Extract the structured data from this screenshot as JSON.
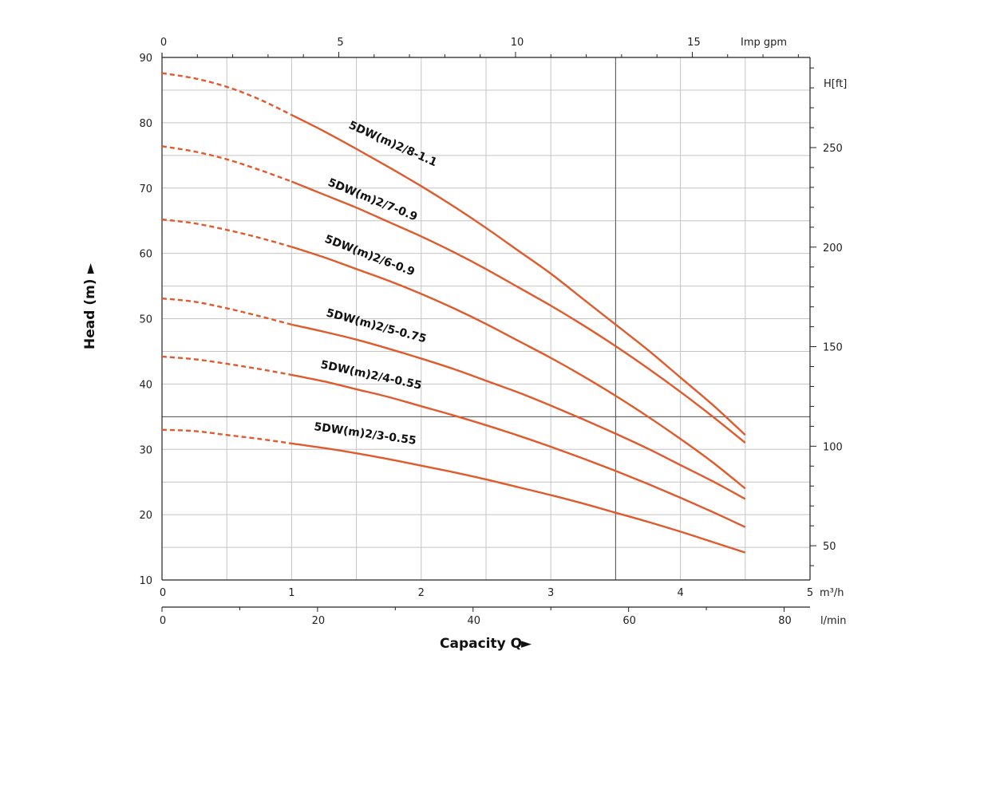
{
  "chart_data": {
    "type": "line",
    "title": "",
    "xlabel": "Capacity Q",
    "ylabel": "Head (m)",
    "x_unit": "m³/h",
    "xlim": [
      0,
      5
    ],
    "ylim": [
      10,
      90
    ],
    "x_ticks": [
      "0",
      "1",
      "2",
      "3",
      "4",
      "5"
    ],
    "y_ticks": [
      "10",
      "20",
      "30",
      "40",
      "50",
      "60",
      "70",
      "80",
      "90"
    ],
    "top_axis": {
      "unit": "Imp gpm",
      "ticks": [
        "0",
        "5",
        "10",
        "15"
      ]
    },
    "right_axis": {
      "unit": "H[ft]",
      "ticks": [
        "50",
        "100",
        "150",
        "200",
        "250"
      ]
    },
    "bottom_axis_2": {
      "unit": "l/min",
      "ticks": [
        "0",
        "20",
        "40",
        "60",
        "80"
      ]
    },
    "grid": true,
    "arrow_glyph": "►",
    "line_color": "#e05a2b",
    "dashed_until_x": 0.97,
    "x": [
      0,
      0.25,
      0.5,
      0.75,
      1.0,
      1.25,
      1.5,
      1.75,
      2.0,
      2.25,
      2.5,
      2.75,
      3.0,
      3.25,
      3.5,
      3.75,
      4.0,
      4.25,
      4.5
    ],
    "series": [
      {
        "name": "5DW(m)2/8-1.1",
        "values": [
          87.6,
          86.8,
          85.5,
          83.6,
          81.2,
          78.7,
          76.0,
          73.2,
          70.3,
          67.2,
          63.9,
          60.4,
          56.9,
          53.0,
          49.1,
          45.2,
          41.0,
          36.8,
          32.2
        ]
      },
      {
        "name": "5DW(m)2/7-0.9",
        "values": [
          76.4,
          75.6,
          74.4,
          72.8,
          71.0,
          69.0,
          67.0,
          64.8,
          62.6,
          60.2,
          57.6,
          54.8,
          52.0,
          49.0,
          45.8,
          42.4,
          38.8,
          35.0,
          31.0
        ]
      },
      {
        "name": "5DW(m)2/6-0.9",
        "values": [
          65.2,
          64.6,
          63.6,
          62.4,
          61.0,
          59.4,
          57.6,
          55.8,
          53.8,
          51.6,
          49.2,
          46.6,
          44.0,
          41.2,
          38.2,
          35.0,
          31.6,
          28.0,
          24.0
        ]
      },
      {
        "name": "5DW(m)2/5-0.75",
        "values": [
          53.1,
          52.6,
          51.6,
          50.4,
          49.1,
          48.0,
          46.8,
          45.4,
          43.9,
          42.3,
          40.5,
          38.7,
          36.7,
          34.6,
          32.4,
          30.1,
          27.6,
          25.1,
          22.4
        ]
      },
      {
        "name": "5DW(m)2/4-0.55",
        "values": [
          44.2,
          43.8,
          43.1,
          42.3,
          41.4,
          40.4,
          39.2,
          38.0,
          36.6,
          35.2,
          33.7,
          32.1,
          30.4,
          28.6,
          26.7,
          24.7,
          22.6,
          20.4,
          18.1
        ]
      },
      {
        "name": "5DW(m)2/3-0.55",
        "values": [
          33.0,
          32.8,
          32.2,
          31.6,
          30.9,
          30.2,
          29.4,
          28.5,
          27.5,
          26.5,
          25.4,
          24.2,
          23.0,
          21.7,
          20.3,
          18.9,
          17.4,
          15.8,
          14.2
        ]
      }
    ]
  }
}
